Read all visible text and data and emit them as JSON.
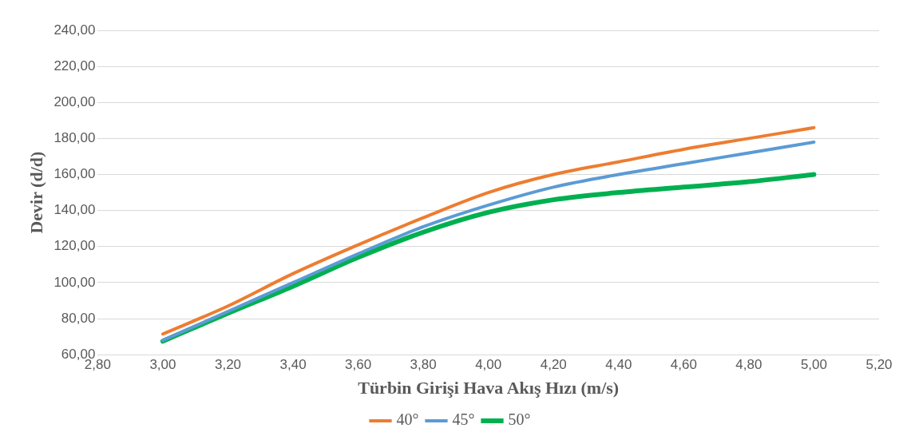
{
  "chart_data": {
    "type": "line",
    "xlabel": "Türbin Girişi Hava Akış Hızı (m/s)",
    "ylabel": "Devir (d/d)",
    "x": [
      3.0,
      3.2,
      3.4,
      3.6,
      3.8,
      4.0,
      4.2,
      4.4,
      4.6,
      4.8,
      5.0
    ],
    "series": [
      {
        "name": "40°",
        "color": "#ed7d31",
        "values": [
          71.5,
          87,
          105,
          121,
          136,
          150,
          160,
          167,
          174,
          180,
          186
        ]
      },
      {
        "name": "45°",
        "color": "#5b9bd5",
        "values": [
          68,
          84,
          100,
          116,
          131,
          143,
          153,
          160,
          166,
          172,
          178
        ]
      },
      {
        "name": "50°",
        "color": "#00b050",
        "values": [
          67.5,
          83,
          98,
          114,
          128,
          139,
          146,
          150,
          153,
          156,
          160
        ]
      }
    ],
    "xlim": [
      2.8,
      5.2
    ],
    "xticks": [
      {
        "value": 2.8,
        "label": "2,80"
      },
      {
        "value": 3.0,
        "label": "3,00"
      },
      {
        "value": 3.2,
        "label": "3,20"
      },
      {
        "value": 3.4,
        "label": "3,40"
      },
      {
        "value": 3.6,
        "label": "3,60"
      },
      {
        "value": 3.8,
        "label": "3,80"
      },
      {
        "value": 4.0,
        "label": "4,00"
      },
      {
        "value": 4.2,
        "label": "4,20"
      },
      {
        "value": 4.4,
        "label": "4,40"
      },
      {
        "value": 4.6,
        "label": "4,60"
      },
      {
        "value": 4.8,
        "label": "4,80"
      },
      {
        "value": 5.0,
        "label": "5,00"
      },
      {
        "value": 5.2,
        "label": "5,20"
      }
    ],
    "ylim": [
      60,
      240
    ],
    "yticks": [
      {
        "value": 60,
        "label": "60,00"
      },
      {
        "value": 80,
        "label": "80,00"
      },
      {
        "value": 100,
        "label": "100,00"
      },
      {
        "value": 120,
        "label": "120,00"
      },
      {
        "value": 140,
        "label": "140,00"
      },
      {
        "value": 160,
        "label": "160,00"
      },
      {
        "value": 180,
        "label": "180,00"
      },
      {
        "value": 200,
        "label": "200,00"
      },
      {
        "value": 220,
        "label": "220,00"
      },
      {
        "value": 240,
        "label": "240,00"
      }
    ],
    "grid": "y",
    "legend": "bottom",
    "marker": "none",
    "line_style": "solid"
  }
}
